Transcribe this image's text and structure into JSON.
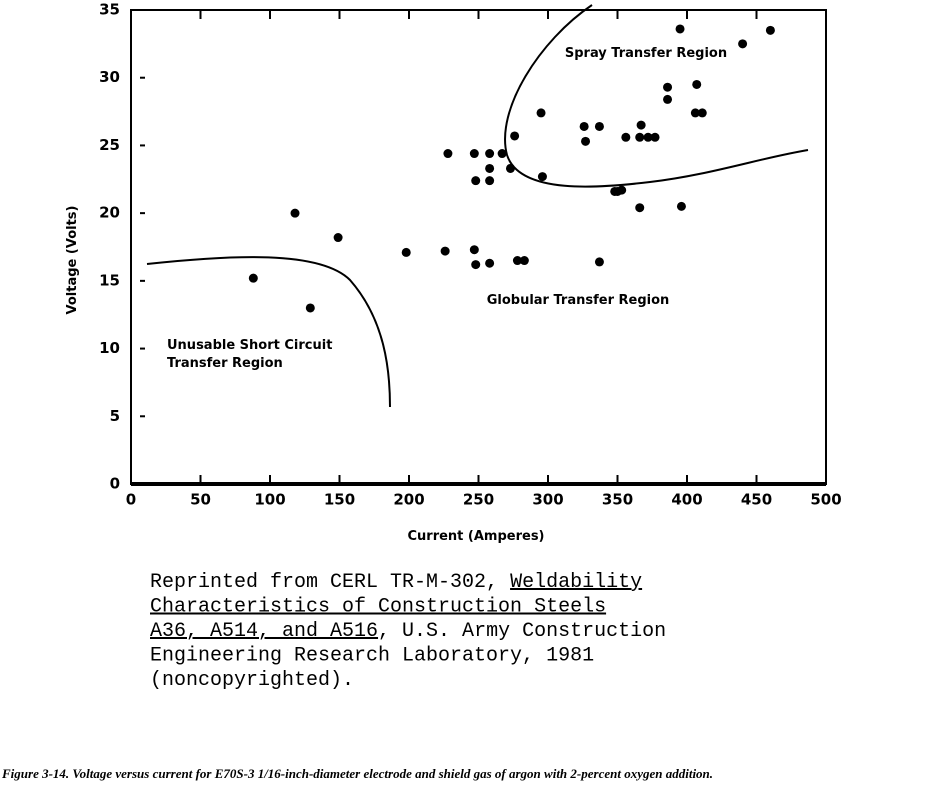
{
  "chart_data": {
    "type": "scatter",
    "x": [
      88,
      118,
      129,
      149,
      198,
      226,
      228,
      247,
      248,
      247,
      248,
      258,
      258,
      258,
      258,
      267,
      273,
      276,
      278,
      283,
      295,
      296,
      326,
      327,
      337,
      337,
      348,
      350,
      353,
      356,
      366,
      367,
      366,
      372,
      377,
      386,
      386,
      395,
      396,
      407,
      406,
      411,
      440,
      460
    ],
    "values": [
      15.2,
      20.0,
      13.0,
      18.2,
      17.1,
      17.2,
      24.4,
      24.4,
      22.4,
      17.3,
      16.2,
      24.4,
      23.3,
      22.4,
      16.3,
      24.4,
      23.3,
      25.7,
      16.5,
      16.5,
      27.4,
      22.7,
      26.4,
      25.3,
      26.4,
      16.4,
      21.6,
      21.6,
      21.7,
      25.6,
      25.6,
      26.5,
      20.4,
      25.6,
      25.6,
      29.3,
      28.4,
      33.6,
      20.5,
      29.5,
      27.4,
      27.4,
      32.5,
      33.5
    ],
    "color": "#000000",
    "xlabel": "Current (Amperes)",
    "ylabel": "Voltage (Volts)",
    "xlim": [
      0,
      500
    ],
    "ylim": [
      0,
      35
    ],
    "xticks": [
      0,
      50,
      100,
      150,
      200,
      250,
      300,
      350,
      400,
      450,
      500
    ],
    "yticks": [
      0,
      5,
      10,
      15,
      20,
      25,
      30,
      35
    ],
    "annotations": [
      "Spray Transfer Region",
      "Globular Transfer Region",
      "Unusable Short Circuit",
      "Transfer Region"
    ]
  },
  "source_note": [
    [
      {
        "text": "Reprinted from CERL TR-M-302, ",
        "underline": false
      },
      {
        "text": "Weldability",
        "underline": true
      }
    ],
    [
      {
        "text": "Characteristics of Construction Steels",
        "underline": true
      }
    ],
    [
      {
        "text": "A36, A514, and A516",
        "underline": true
      },
      {
        "text": ", U.S. Army Construction",
        "underline": false
      }
    ],
    [
      {
        "text": "Engineering Research Laboratory, 1981",
        "underline": false
      }
    ],
    [
      {
        "text": "(noncopyrighted).",
        "underline": false
      }
    ]
  ],
  "caption": "Figure 3-14. Voltage versus current for E70S-3 1/16-inch-diameter electrode and shield gas of argon with 2-percent oxygen addition."
}
